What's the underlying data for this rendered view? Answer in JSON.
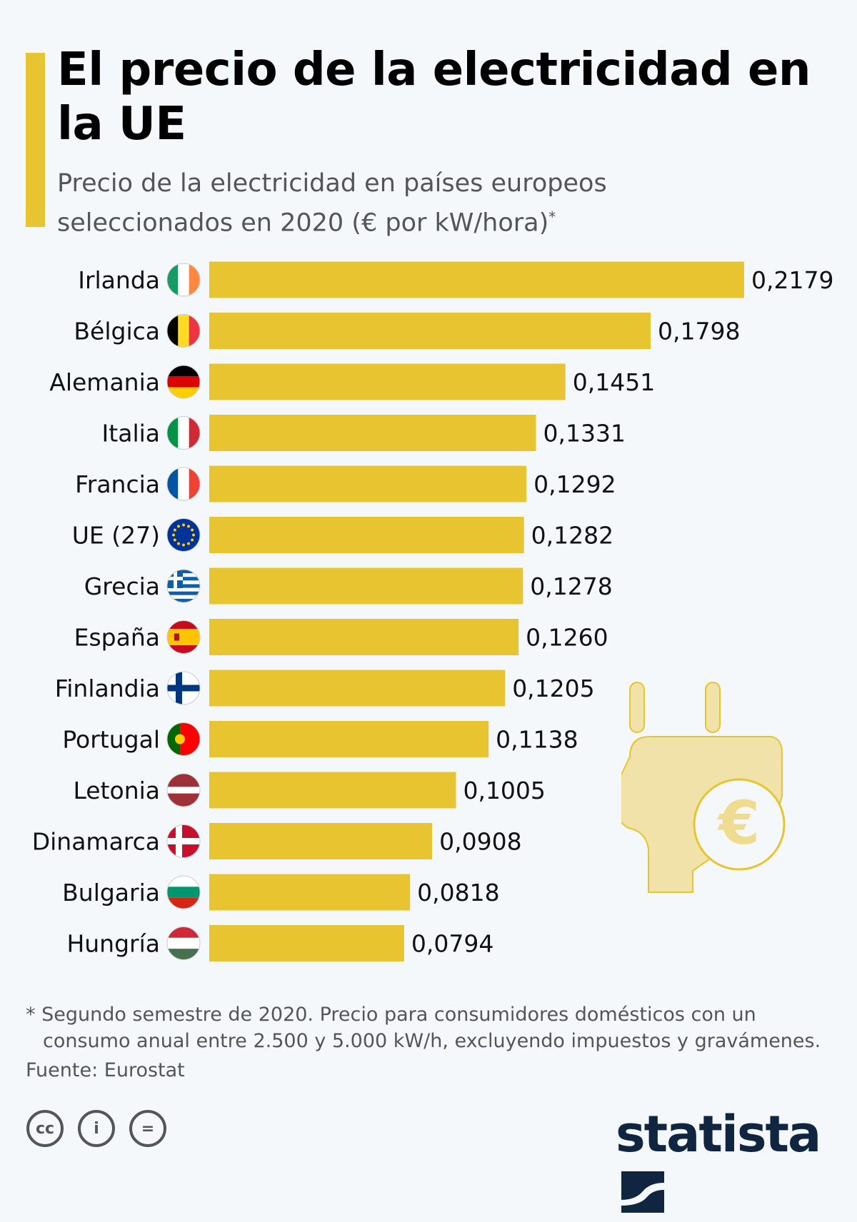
{
  "title": "El precio de la electricidad en la UE",
  "subtitle": "Precio de la electricidad en países europeos seleccionados en 2020 (€ por kW/hora)",
  "subtitle_mark": "*",
  "footnote_line1": "* Segundo semestre de 2020. Precio para consumidores domésticos con un",
  "footnote_line2": "consumo anual entre 2.500 y 5.000 kW/h, excluyendo impuestos y gravámenes.",
  "source": "Fuente: Eurostat",
  "license_icons": [
    "cc-icon",
    "attribution-icon",
    "no-derivatives-icon"
  ],
  "license_glyphs": [
    "cc",
    "i",
    "="
  ],
  "brand": "statista",
  "colors": {
    "bar": "#e8c530",
    "accent": "#e8c530",
    "brand": "#0f2540",
    "plug": "#f0e2a8"
  },
  "chart_data": {
    "type": "bar",
    "orientation": "horizontal",
    "categories": [
      "Irlanda",
      "Bélgica",
      "Alemania",
      "Italia",
      "Francia",
      "UE (27)",
      "Grecia",
      "España",
      "Finlandia",
      "Portugal",
      "Letonia",
      "Dinamarca",
      "Bulgaria",
      "Hungría"
    ],
    "values": [
      0.2179,
      0.1798,
      0.1451,
      0.1331,
      0.1292,
      0.1282,
      0.1278,
      0.126,
      0.1205,
      0.1138,
      0.1005,
      0.0908,
      0.0818,
      0.0794
    ],
    "value_labels": [
      "0,2179",
      "0,1798",
      "0,1451",
      "0,1331",
      "0,1292",
      "0,1282",
      "0,1278",
      "0,1260",
      "0,1205",
      "0,1138",
      "0,1005",
      "0,0908",
      "0,0818",
      "0,0794"
    ],
    "flags": [
      "ie",
      "be",
      "de",
      "it",
      "fr",
      "eu",
      "gr",
      "es",
      "fi",
      "pt",
      "lv",
      "dk",
      "bg",
      "hu"
    ],
    "xlim": [
      0,
      0.2179
    ],
    "grid": false
  }
}
